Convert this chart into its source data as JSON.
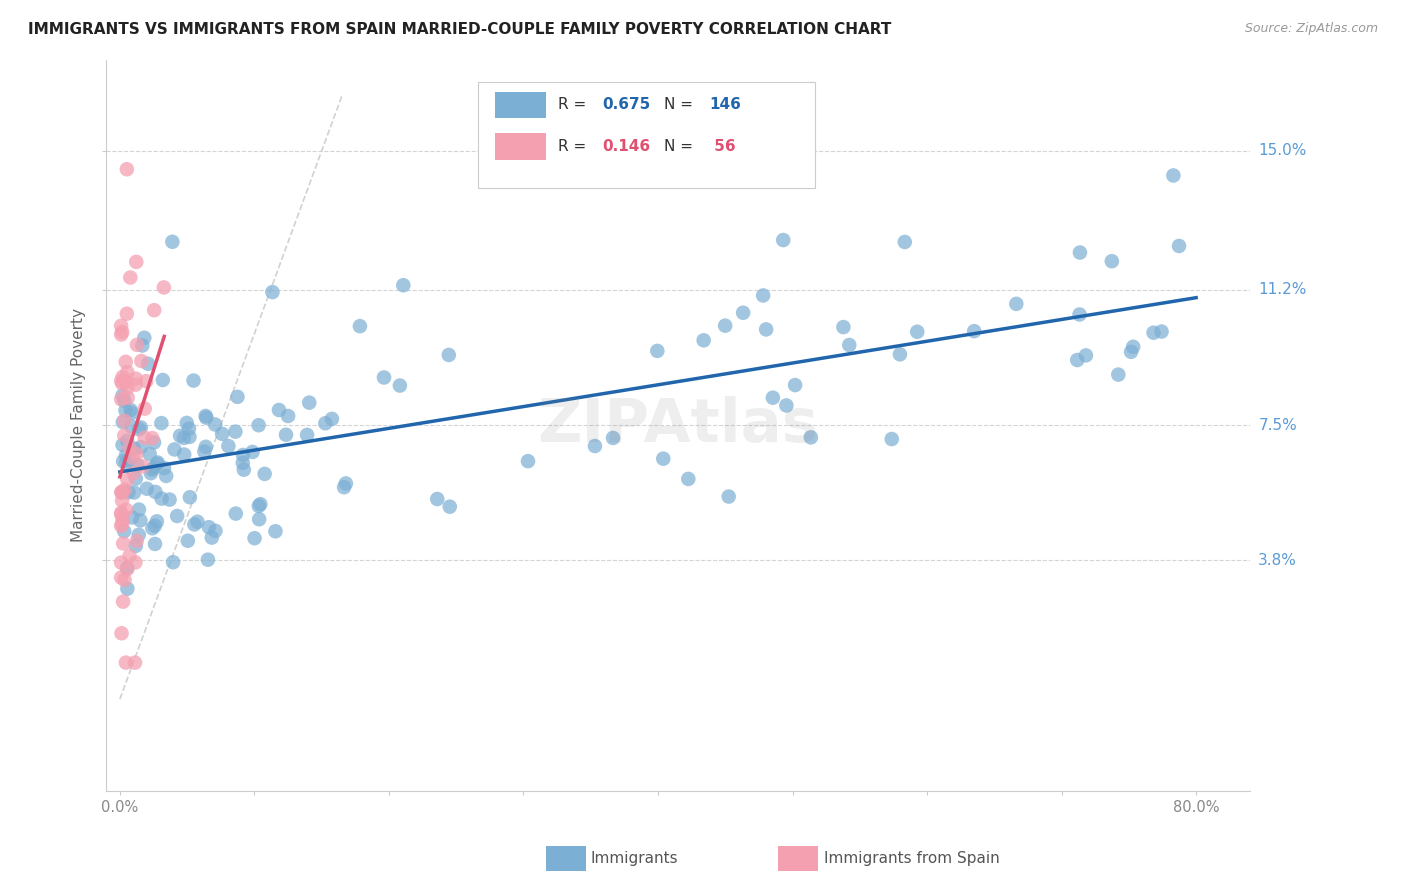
{
  "title": "IMMIGRANTS VS IMMIGRANTS FROM SPAIN MARRIED-COUPLE FAMILY POVERTY CORRELATION CHART",
  "source": "Source: ZipAtlas.com",
  "ylabel": "Married-Couple Family Poverty",
  "ytick_labels": [
    "3.8%",
    "7.5%",
    "11.2%",
    "15.0%"
  ],
  "ytick_values": [
    0.038,
    0.075,
    0.112,
    0.15
  ],
  "xtick_values": [
    0.0,
    0.1,
    0.2,
    0.3,
    0.4,
    0.5,
    0.6,
    0.7,
    0.8
  ],
  "xlim": [
    -0.01,
    0.84
  ],
  "ylim": [
    -0.025,
    0.175
  ],
  "legend1_r": "0.675",
  "legend1_n": "146",
  "legend2_r": "0.146",
  "legend2_n": " 56",
  "blue_color": "#7bafd4",
  "pink_color": "#f4a0b0",
  "blue_line_color": "#2166ac",
  "pink_line_color": "#e05070",
  "diagonal_color": "#cccccc",
  "watermark": "ZIPAtlas",
  "blue_seed": 42,
  "pink_seed": 99,
  "n_blue": 146,
  "n_pink": 56
}
